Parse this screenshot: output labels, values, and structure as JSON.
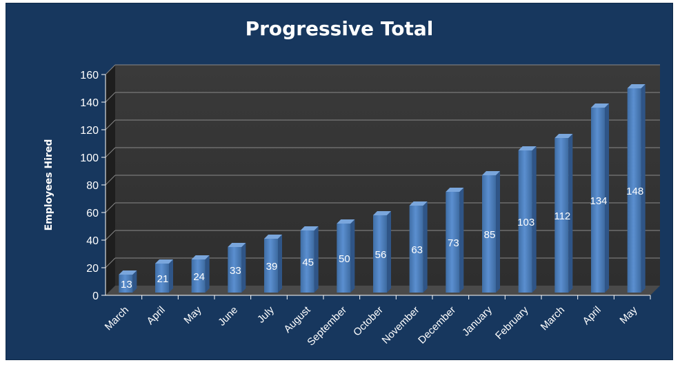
{
  "chart_data": {
    "type": "bar",
    "title": "Progressive Total",
    "xlabel": "",
    "ylabel": "Employees Hired",
    "categories": [
      "March",
      "April",
      "May",
      "June",
      "July",
      "August",
      "September",
      "October",
      "November",
      "December",
      "January",
      "February",
      "March",
      "April",
      "May"
    ],
    "values": [
      13,
      21,
      24,
      33,
      39,
      45,
      50,
      56,
      63,
      73,
      85,
      103,
      112,
      134,
      148
    ],
    "ylim": [
      0,
      160
    ],
    "yticks": [
      0,
      20,
      40,
      60,
      80,
      100,
      120,
      140,
      160
    ],
    "grid": true,
    "legend": "none",
    "colors": {
      "background": "#17375e",
      "plot_area": "#3a3a3a",
      "bar": "#4f81bd",
      "text": "#ffffff"
    }
  }
}
